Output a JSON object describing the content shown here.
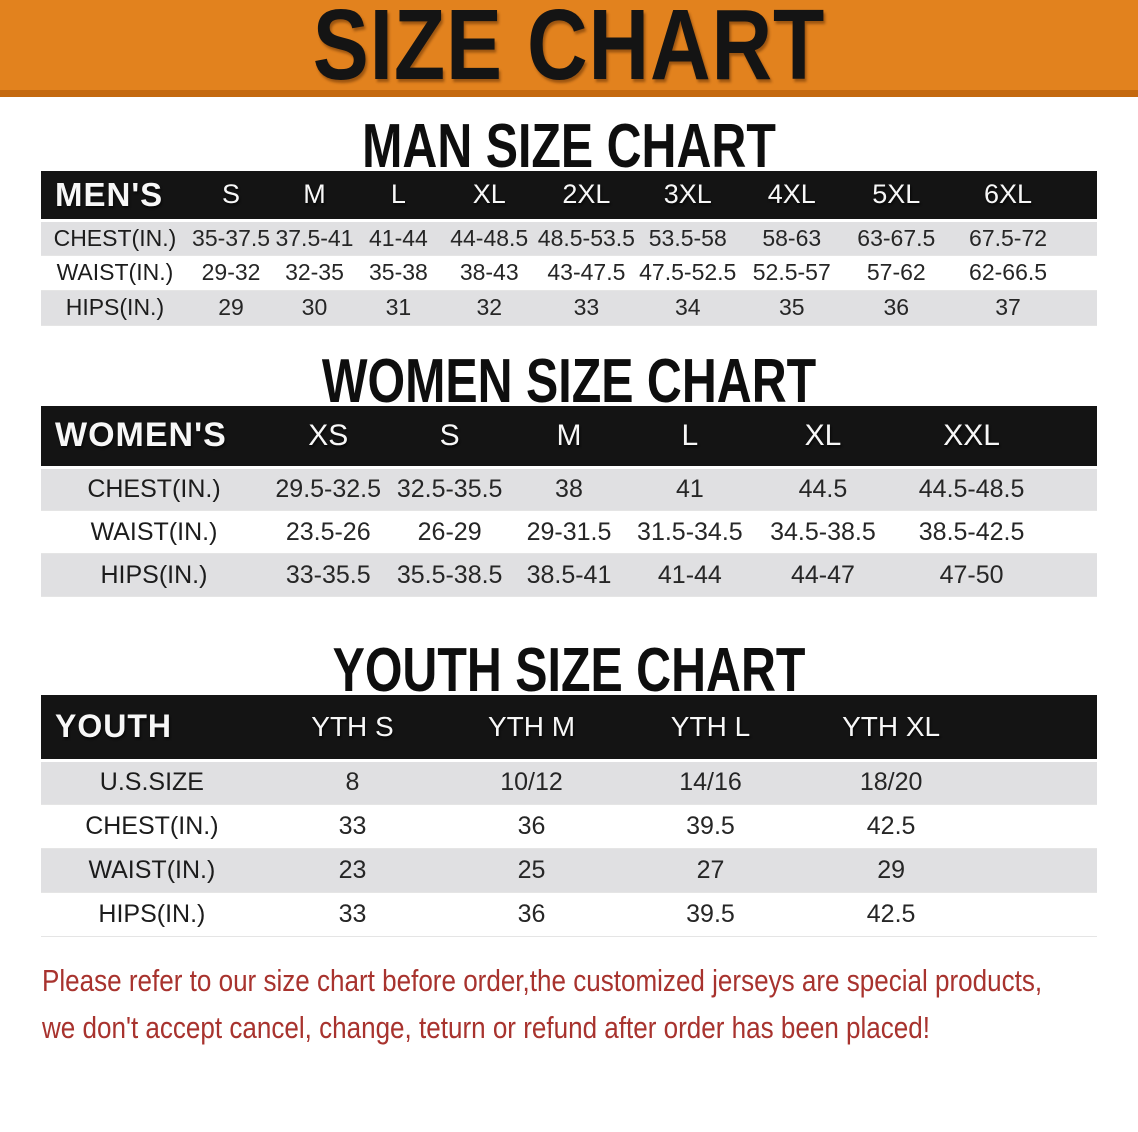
{
  "banner": {
    "title": "SIZE CHART"
  },
  "colors": {
    "banner_bg": "#E2821E",
    "banner_border": "#C4690F",
    "table_header_bg": "#141414",
    "row_shade": "#E0E0E2",
    "notice_text": "#A8332E"
  },
  "sections": [
    {
      "heading": "MAN SIZE CHART",
      "table": {
        "corner": "MEN'S",
        "columns": [
          "S",
          "M",
          "L",
          "XL",
          "2XL",
          "3XL",
          "4XL",
          "5XL",
          "6XL"
        ],
        "rows": [
          {
            "label": "CHEST(IN.)",
            "values": [
              "35-37.5",
              "37.5-41",
              "41-44",
              "44-48.5",
              "48.5-53.5",
              "53.5-58",
              "58-63",
              "63-67.5",
              "67.5-72"
            ]
          },
          {
            "label": "WAIST(IN.)",
            "values": [
              "29-32",
              "32-35",
              "35-38",
              "38-43",
              "43-47.5",
              "47.5-52.5",
              "52.5-57",
              "57-62",
              "62-66.5"
            ]
          },
          {
            "label": "HIPS(IN.)",
            "values": [
              "29",
              "30",
              "31",
              "32",
              "33",
              "34",
              "35",
              "36",
              "37"
            ]
          }
        ]
      }
    },
    {
      "heading": "WOMEN SIZE CHART",
      "table": {
        "corner": "WOMEN'S",
        "columns": [
          "XS",
          "S",
          "M",
          "L",
          "XL",
          "XXL"
        ],
        "rows": [
          {
            "label": "CHEST(IN.)",
            "values": [
              "29.5-32.5",
              "32.5-35.5",
              "38",
              "41",
              "44.5",
              "44.5-48.5"
            ]
          },
          {
            "label": "WAIST(IN.)",
            "values": [
              "23.5-26",
              "26-29",
              "29-31.5",
              "31.5-34.5",
              "34.5-38.5",
              "38.5-42.5"
            ]
          },
          {
            "label": "HIPS(IN.)",
            "values": [
              "33-35.5",
              "35.5-38.5",
              "38.5-41",
              "41-44",
              "44-47",
              "47-50"
            ]
          }
        ]
      }
    },
    {
      "heading": "YOUTH SIZE CHART",
      "table": {
        "corner": "YOUTH",
        "columns": [
          "YTH S",
          "YTH M",
          "YTH L",
          "YTH XL"
        ],
        "rows": [
          {
            "label": "U.S.SIZE",
            "values": [
              "8",
              "10/12",
              "14/16",
              "18/20"
            ]
          },
          {
            "label": "CHEST(IN.)",
            "values": [
              "33",
              "36",
              "39.5",
              "42.5"
            ]
          },
          {
            "label": "WAIST(IN.)",
            "values": [
              "23",
              "25",
              "27",
              "29"
            ]
          },
          {
            "label": "HIPS(IN.)",
            "values": [
              "33",
              "36",
              "39.5",
              "42.5"
            ]
          }
        ]
      }
    }
  ],
  "footer": {
    "line1": "Please refer to our size chart before order,the customized jerseys are special products,",
    "line2": "we don't accept cancel, change, teturn or refund after order has been placed!"
  }
}
